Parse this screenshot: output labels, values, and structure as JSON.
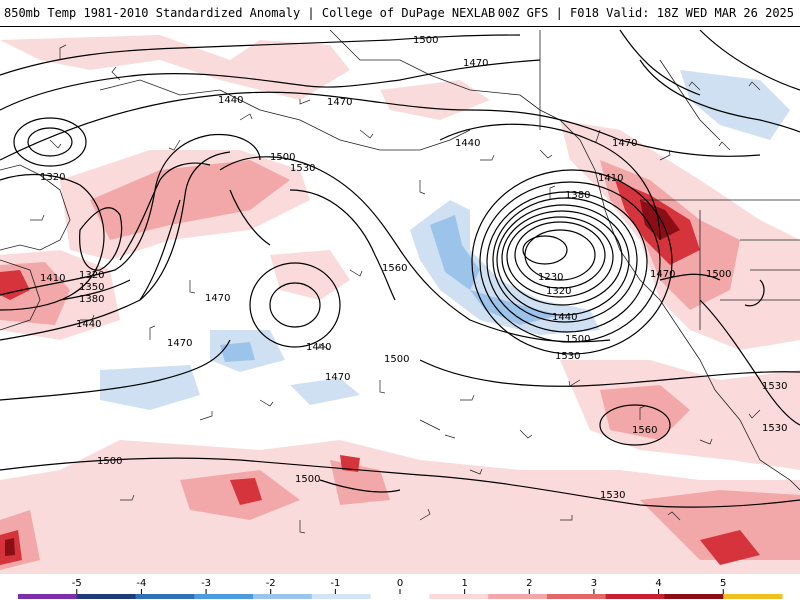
{
  "header": {
    "title_left": "850mb Temp 1981-2010 Standardized Anomaly | College of DuPage NEXLAB",
    "title_right": "00Z GFS | F018 Valid: 18Z WED MAR 26 2025"
  },
  "contour_labels": [
    "1500",
    "1470",
    "1440",
    "1470",
    "1320",
    "1500",
    "1530",
    "1440",
    "1470",
    "1380",
    "1410",
    "1410",
    "1320",
    "1350",
    "1380",
    "1470",
    "1440",
    "1560",
    "1230",
    "1320",
    "1440",
    "1500",
    "1530",
    "1470",
    "1500",
    "1440",
    "1470",
    "1500",
    "1470",
    "1560",
    "1530",
    "1530",
    "1500",
    "1500",
    "1530"
  ],
  "colorbar": {
    "ticks": [
      "-5",
      "-4",
      "-3",
      "-2",
      "-1",
      "0",
      "1",
      "2",
      "3",
      "4",
      "5"
    ],
    "colors": [
      "#7b2fa8",
      "#1f3a78",
      "#2f6fb8",
      "#4a9be0",
      "#9cc4ea",
      "#d3e4f4",
      "#ffffff",
      "#fad9d9",
      "#f2a8a8",
      "#e26868",
      "#c72030",
      "#8b0d16",
      "#f0c020"
    ]
  }
}
